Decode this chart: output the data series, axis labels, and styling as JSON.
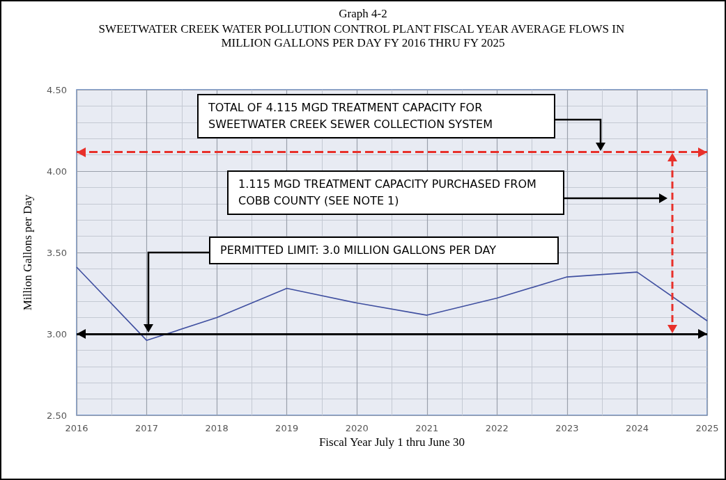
{
  "chart_data": {
    "type": "line",
    "title": "Graph 4-2",
    "subtitle": "SWEETWATER CREEK WATER POLLUTION CONTROL PLANT FISCAL YEAR AVERAGE FLOWS IN MILLION GALLONS PER DAY FY 2016 THRU FY 2025",
    "xlabel": "Fiscal Year July 1 thru June 30",
    "ylabel": "Million Gallons per Day",
    "x": [
      2016,
      2017,
      2018,
      2019,
      2020,
      2021,
      2022,
      2023,
      2024,
      2025
    ],
    "series": [
      {
        "color": "#3f4fa0",
        "values": [
          3.41,
          2.96,
          3.1,
          3.28,
          3.19,
          3.115,
          3.22,
          3.35,
          3.38,
          3.08
        ]
      }
    ],
    "xlim": [
      2016,
      2025
    ],
    "xticks": [
      2016,
      2017,
      2018,
      2019,
      2020,
      2021,
      2022,
      2023,
      2024,
      2025
    ],
    "ylim": [
      2.5,
      4.5
    ],
    "yticks": [
      {
        "value": 2.5,
        "label": "2.50"
      },
      {
        "value": 3,
        "label": "3.00"
      },
      {
        "value": 3.5,
        "label": "3.50"
      },
      {
        "value": 4,
        "label": "4.00"
      },
      {
        "value": 4.5,
        "label": "4.50"
      }
    ],
    "grid": true,
    "ref_lines": [
      {
        "axis": "y",
        "value": 4.115,
        "label": "TOTAL OF 4.115 MGD TREATMENT CAPACITY FOR SWEETWATER CREEK SEWER COLLECTION SYSTEM",
        "color": "#e8302a",
        "line_style": "dashed"
      },
      {
        "axis": "y",
        "value": 3.0,
        "label": "PERMITTED LIMIT:  3.0 MILLION GALLONS PER DAY",
        "color": "#000000",
        "line_style": "solid"
      }
    ],
    "annotations": [
      "1.115 MGD TREATMENT CAPACITY PURCHASED FROM COBB COUNTY (SEE NOTE 1)"
    ]
  }
}
